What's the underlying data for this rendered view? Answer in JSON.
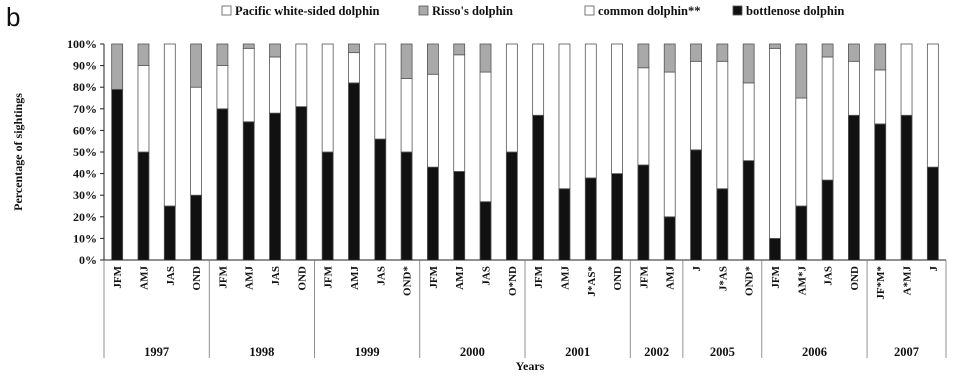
{
  "panel_letter": "b",
  "colors": {
    "pacific": "#ffffff",
    "risso": "#a9a9a9",
    "common": "#ffffff",
    "bottlenose": "#111111",
    "outline": "#555555"
  },
  "chart_data": {
    "type": "bar",
    "stacked": true,
    "ylabel": "Percentage of sightings",
    "xlabel": "Years",
    "ylim": [
      0,
      100
    ],
    "y_ticks": [
      "0%",
      "10%",
      "20%",
      "30%",
      "40%",
      "50%",
      "60%",
      "70%",
      "80%",
      "90%",
      "100%"
    ],
    "grid": false,
    "legend_position": "top",
    "legend": [
      {
        "key": "pacific",
        "label": "Pacific white-sided dolphin"
      },
      {
        "key": "risso",
        "label": "Risso's dolphin"
      },
      {
        "key": "common",
        "label": "common dolphin**"
      },
      {
        "key": "bottlenose",
        "label": "bottlenose dolphin"
      }
    ],
    "categories": [
      "JFM",
      "AMJ",
      "JAS",
      "OND",
      "JFM",
      "AMJ",
      "JAS",
      "OND",
      "JFM",
      "AMJ",
      "JAS",
      "OND*",
      "JFM",
      "AMJ",
      "JAS",
      "O*ND",
      "JFM",
      "AMJ",
      "J*AS*",
      "OND",
      "JFM",
      "AMJ",
      "J",
      "J*AS",
      "OND*",
      "JFM",
      "AM*J",
      "JAS",
      "OND",
      "JF*M*",
      "A*MJ",
      "J"
    ],
    "years": [
      {
        "label": "1997",
        "count": 4
      },
      {
        "label": "1998",
        "count": 4
      },
      {
        "label": "1999",
        "count": 4
      },
      {
        "label": "2000",
        "count": 4
      },
      {
        "label": "2001",
        "count": 4
      },
      {
        "label": "2002",
        "count": 2
      },
      {
        "label": "2005",
        "count": 3
      },
      {
        "label": "2006",
        "count": 4
      },
      {
        "label": "2007",
        "count": 3
      }
    ],
    "series": [
      {
        "name": "bottlenose dolphin",
        "key": "bottlenose",
        "values": [
          79,
          50,
          25,
          30,
          70,
          64,
          68,
          71,
          50,
          82,
          56,
          50,
          43,
          41,
          27,
          50,
          67,
          33,
          38,
          40,
          44,
          20,
          51,
          33,
          46,
          10,
          25,
          37,
          67,
          63,
          67,
          43
        ]
      },
      {
        "name": "common dolphin**",
        "key": "common",
        "values": [
          0,
          40,
          75,
          50,
          20,
          34,
          26,
          29,
          50,
          14,
          44,
          34,
          43,
          54,
          60,
          50,
          33,
          67,
          62,
          60,
          45,
          67,
          41,
          59,
          36,
          88,
          50,
          57,
          25,
          25,
          33,
          57
        ]
      },
      {
        "name": "Risso's dolphin",
        "key": "risso",
        "values": [
          21,
          10,
          0,
          20,
          10,
          2,
          6,
          0,
          0,
          4,
          0,
          16,
          14,
          5,
          13,
          0,
          0,
          0,
          0,
          0,
          11,
          13,
          8,
          8,
          18,
          2,
          25,
          6,
          8,
          12,
          0,
          0
        ]
      },
      {
        "name": "Pacific white-sided dolphin",
        "key": "pacific",
        "values": [
          0,
          0,
          0,
          0,
          0,
          0,
          0,
          0,
          0,
          0,
          0,
          0,
          0,
          0,
          0,
          0,
          0,
          0,
          0,
          0,
          0,
          0,
          0,
          0,
          0,
          0,
          0,
          0,
          0,
          0,
          0,
          0
        ]
      }
    ]
  }
}
